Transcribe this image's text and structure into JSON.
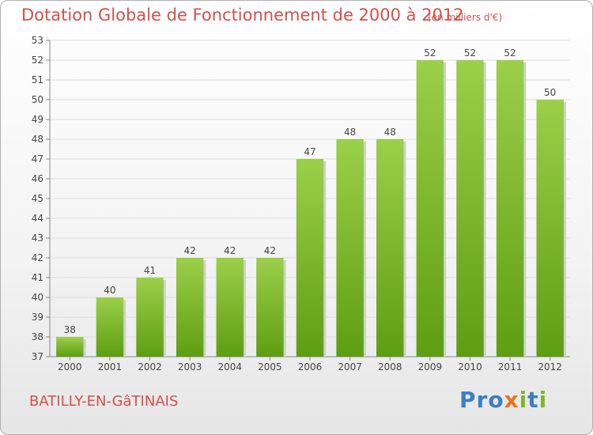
{
  "title": "Dotation Globale de Fonctionnement de 2000 à 2012",
  "unit_note": "(en milliers d'€)",
  "commune": "BATILLY-EN-GâTINAIS",
  "logo": {
    "text": "Proxiti",
    "letters": [
      {
        "ch": "P",
        "color": "#3a7fc4"
      },
      {
        "ch": "r",
        "color": "#3a7fc4"
      },
      {
        "ch": "o",
        "color": "#3a7fc4"
      },
      {
        "ch": "x",
        "color": "#e8731e"
      },
      {
        "ch": "i",
        "color": "#7ab929"
      },
      {
        "ch": "t",
        "color": "#3a7fc4"
      },
      {
        "ch": "i",
        "color": "#7ab929"
      }
    ]
  },
  "colors": {
    "bar_top": "#9ccf4a",
    "bar_bottom": "#5e9e12",
    "text": "#d4504a",
    "grid": "#dddddd"
  },
  "chart_data": {
    "type": "bar",
    "title": "Dotation Globale de Fonctionnement de 2000 à 2012",
    "subtitle": "(en milliers d'€)",
    "categories": [
      "2000",
      "2001",
      "2002",
      "2003",
      "2004",
      "2005",
      "2006",
      "2007",
      "2008",
      "2009",
      "2010",
      "2011",
      "2012"
    ],
    "values": [
      38,
      40,
      41,
      42,
      42,
      42,
      47,
      48,
      48,
      52,
      52,
      52,
      50
    ],
    "ylim": [
      37,
      53
    ],
    "yticks": [
      37,
      38,
      39,
      40,
      41,
      42,
      43,
      44,
      45,
      46,
      47,
      48,
      49,
      50,
      51,
      52,
      53
    ],
    "grid": true
  }
}
